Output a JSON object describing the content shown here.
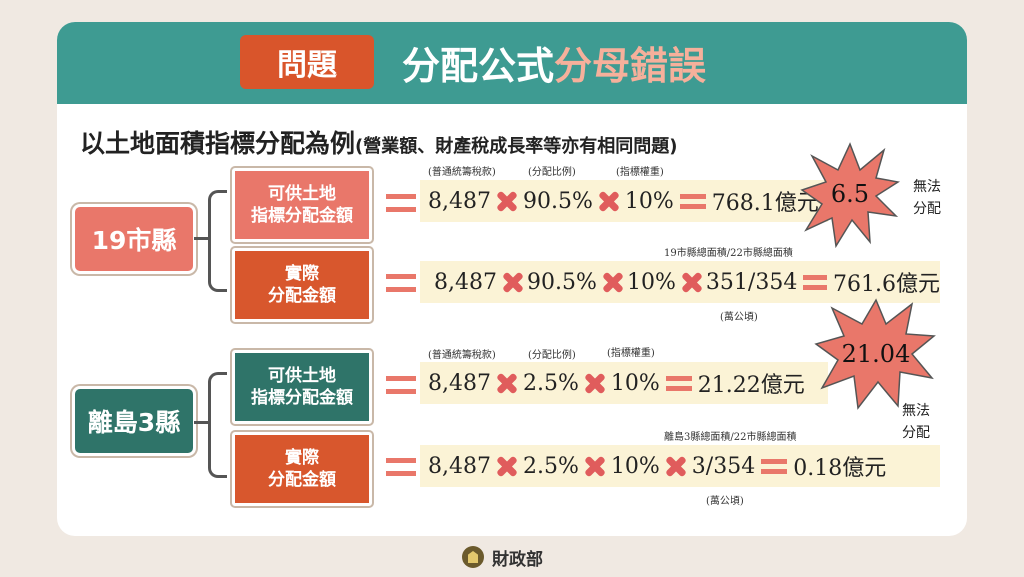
{
  "header": {
    "tag": "問題",
    "title_part1": "分配公式",
    "title_part2": "分母錯誤"
  },
  "subtitle": {
    "main": "以土地面積指標分配為例",
    "note": "(營業額、財產稅成長率等亦有相同問題)"
  },
  "groups": [
    {
      "label": "19市縣",
      "rows": [
        {
          "label_line1": "可供土地",
          "label_line2": "指標分配金額",
          "annotations": [
            "(普通統籌稅款)",
            "(分配比例)",
            "(指標權重)"
          ],
          "terms": [
            "8,487",
            "90.5%",
            "10%"
          ],
          "result": "768.1億元"
        },
        {
          "label_line1": "實際",
          "label_line2": "分配金額",
          "ratio_annotation": "19市縣總面積/22市縣總面積",
          "unit_annotation": "(萬公頃)",
          "terms": [
            "8,487",
            "90.5%",
            "10%",
            "351/354"
          ],
          "result": "761.6億元"
        }
      ],
      "burst_value": "6.5",
      "side_line1": "無法",
      "side_line2": "分配"
    },
    {
      "label": "離島3縣",
      "rows": [
        {
          "label_line1": "可供土地",
          "label_line2": "指標分配金額",
          "annotations": [
            "(普通統籌稅款)",
            "(分配比例)",
            "(指標權重)"
          ],
          "terms": [
            "8,487",
            "2.5%",
            "10%"
          ],
          "result": "21.22億元"
        },
        {
          "label_line1": "實際",
          "label_line2": "分配金額",
          "ratio_annotation": "離島3縣總面積/22市縣總面積",
          "unit_annotation": "(萬公頃)",
          "terms": [
            "8,487",
            "2.5%",
            "10%",
            "3/354"
          ],
          "result": "0.18億元"
        }
      ],
      "burst_value": "21.04",
      "side_line1": "無法",
      "side_line2": "分配"
    }
  ],
  "footer": {
    "org": "財政部"
  },
  "colors": {
    "teal_header": "#3e9b92",
    "salmon": "#e9776a",
    "dark_teal": "#2f7469",
    "orange_red": "#d8572d",
    "band": "#fbf3d6"
  }
}
